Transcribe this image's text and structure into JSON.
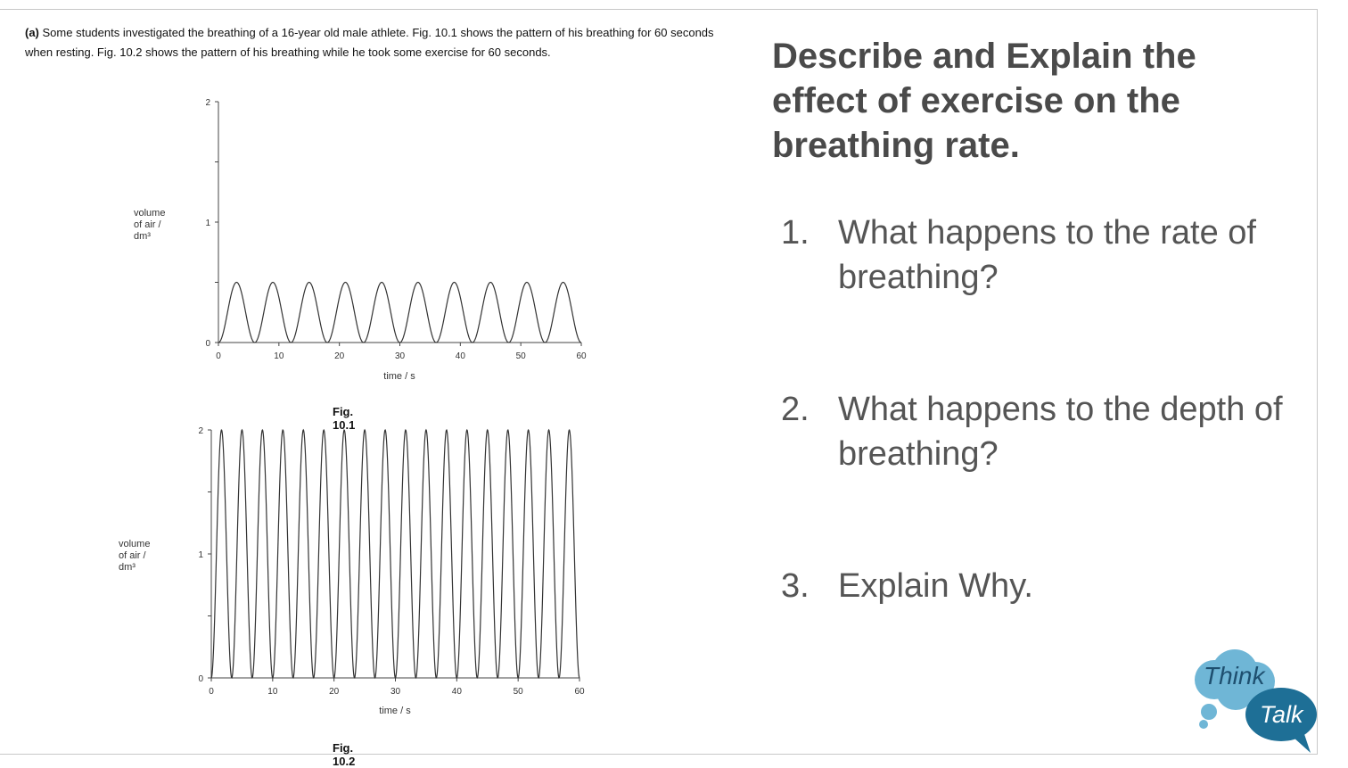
{
  "intro": {
    "part": "(a)",
    "text": "Some students investigated the breathing of a 16-year old male athlete. Fig. 10.1 shows the pattern of his breathing for 60 seconds when resting. Fig. 10.2 shows the pattern of his breathing while he took some exercise for 60 seconds."
  },
  "chart_data": [
    {
      "type": "line",
      "caption": "Fig. 10.1",
      "ylabel_line1": "volume",
      "ylabel_line2": "of air / dm³",
      "xlabel": "time / s",
      "xlim": [
        0,
        60
      ],
      "ylim": [
        0,
        2
      ],
      "xticks": [
        "0",
        "10",
        "20",
        "30",
        "40",
        "50",
        "60"
      ],
      "yticks": [
        "0",
        "1",
        "2"
      ],
      "grid": false,
      "series": [
        {
          "cycles": 10,
          "min": 0,
          "max": 0.5
        }
      ]
    },
    {
      "type": "line",
      "caption": "Fig. 10.2",
      "ylabel_line1": "volume",
      "ylabel_line2": "of air / dm³",
      "xlabel": "time / s",
      "xlim": [
        0,
        60
      ],
      "ylim": [
        0,
        2
      ],
      "xticks": [
        "0",
        "10",
        "20",
        "30",
        "40",
        "50",
        "60"
      ],
      "yticks": [
        "0",
        "1",
        "2"
      ],
      "grid": false,
      "series": [
        {
          "cycles": 18,
          "min": 0,
          "max": 2
        }
      ]
    }
  ],
  "heading": "Describe and Explain the effect of exercise on the breathing rate.",
  "questions": [
    {
      "num": "1.",
      "text": "What happens to the rate of breathing?"
    },
    {
      "num": "2.",
      "text": "What happens to the depth of breathing?"
    },
    {
      "num": "3.",
      "text": "Explain Why."
    }
  ],
  "badge": {
    "think": "Think",
    "talk": "Talk",
    "think_color": "#6fb6d6",
    "talk_color": "#1e6f96"
  }
}
